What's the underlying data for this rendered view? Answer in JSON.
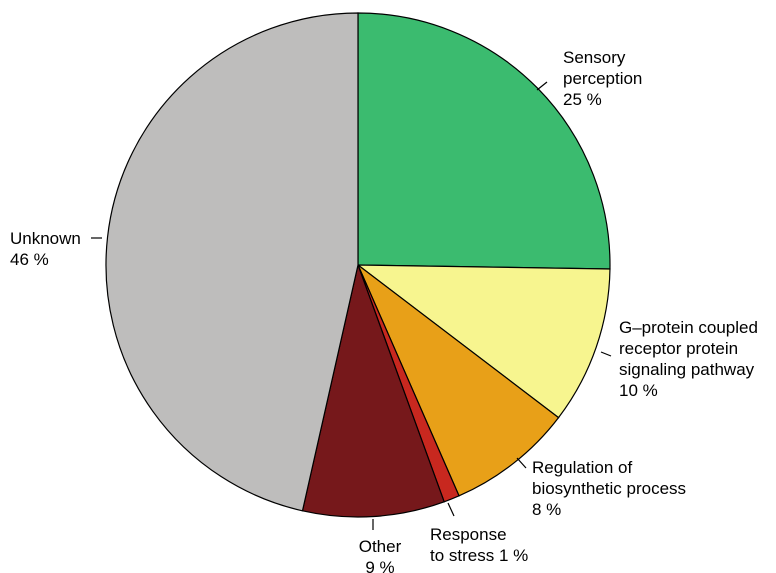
{
  "chart_data": {
    "type": "pie",
    "title": "",
    "start_angle_deg": 0,
    "direction": "clockwise",
    "slices": [
      {
        "label_lines": [
          "Sensory",
          "perception",
          "25 %"
        ],
        "value": 25,
        "color": "#3bbb6f"
      },
      {
        "label_lines": [
          "G–protein coupled",
          "receptor protein",
          "signaling pathway",
          "10 %"
        ],
        "value": 10,
        "color": "#f7f58f"
      },
      {
        "label_lines": [
          "Regulation of",
          "biosynthetic process",
          "8 %"
        ],
        "value": 8,
        "color": "#e8a018"
      },
      {
        "label_lines": [
          "Response",
          "to stress 1 %"
        ],
        "value": 1,
        "color": "#c8281f"
      },
      {
        "label_lines": [
          "Other",
          "9 %"
        ],
        "value": 9,
        "color": "#76181b"
      },
      {
        "label_lines": [
          "Unknown",
          "46 %"
        ],
        "value": 46,
        "color": "#bebdbc"
      }
    ]
  }
}
